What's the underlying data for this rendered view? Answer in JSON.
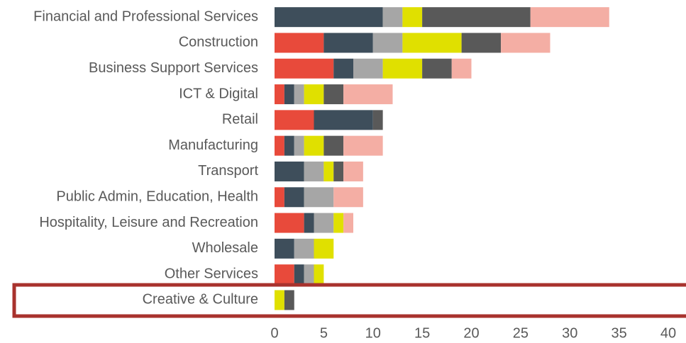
{
  "chart_data": {
    "type": "stacked-barh",
    "categories": [
      "Financial and Professional Services",
      "Construction",
      "Business Support Services",
      "ICT & Digital",
      "Retail",
      "Manufacturing",
      "Transport",
      "Public Admin, Education, Health",
      "Hospitality, Leisure and Recreation",
      "Wholesale",
      "Other Services",
      "Creative & Culture"
    ],
    "series": [
      {
        "color": "#e84a3b",
        "values": [
          0,
          5,
          6,
          1,
          4,
          1,
          0,
          1,
          3,
          0,
          2,
          0
        ]
      },
      {
        "color": "#3e4e5b",
        "values": [
          11,
          5,
          2,
          1,
          6,
          1,
          3,
          2,
          1,
          2,
          1,
          0
        ]
      },
      {
        "color": "#a6a6a6",
        "values": [
          2,
          3,
          3,
          1,
          0,
          1,
          2,
          3,
          2,
          2,
          1,
          0
        ]
      },
      {
        "color": "#e0e000",
        "values": [
          2,
          6,
          4,
          2,
          0,
          2,
          1,
          0,
          1,
          2,
          1,
          1
        ]
      },
      {
        "color": "#595959",
        "values": [
          11,
          4,
          3,
          2,
          1,
          2,
          1,
          0,
          0,
          0,
          0,
          1
        ]
      },
      {
        "color": "#f4aea4",
        "values": [
          8,
          5,
          2,
          5,
          0,
          4,
          2,
          3,
          1,
          0,
          0,
          0
        ]
      }
    ],
    "xlim": [
      0,
      40
    ],
    "xticks": [
      0,
      5,
      10,
      15,
      20,
      25,
      30,
      35,
      40
    ]
  }
}
